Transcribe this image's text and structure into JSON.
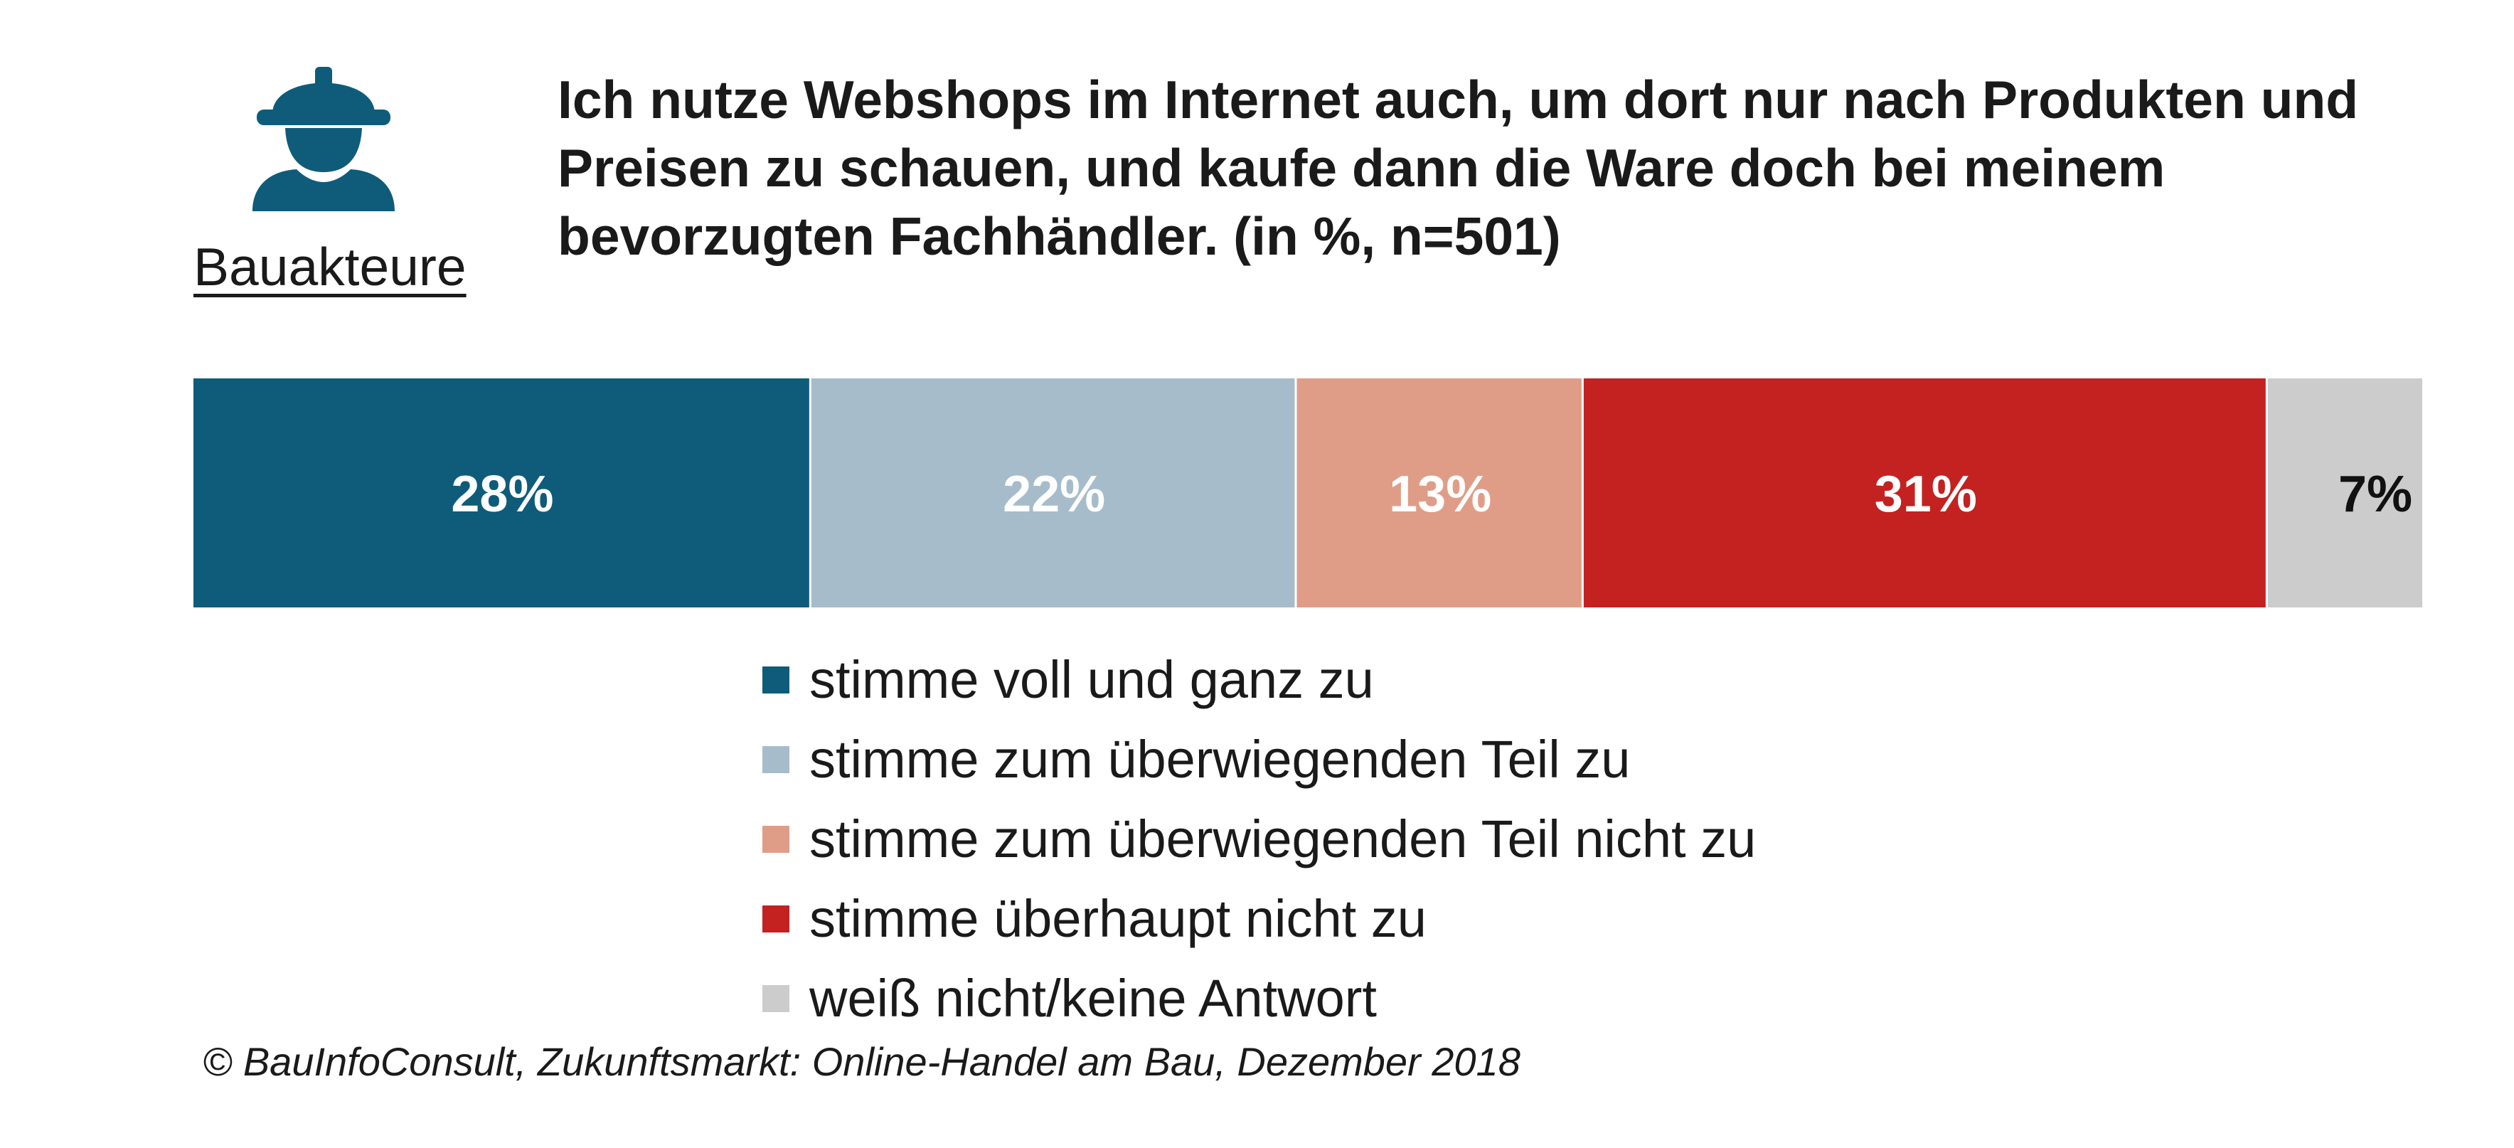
{
  "figure": {
    "icon": "construction-worker-icon",
    "label": "Bauakteure"
  },
  "chart_data": {
    "type": "bar",
    "orientation": "horizontal-stacked",
    "title": "Ich nutze Webshops im Internet auch, um dort nur nach Produkten und Preisen zu schauen, und kaufe dann die Ware doch bei meinem bevorzugten Fachhändler. (in %, n=501)",
    "xlabel": "",
    "ylabel": "",
    "unit": "%",
    "legend_position": "bottom",
    "grid": false,
    "series": [
      {
        "name": "stimme voll und ganz zu",
        "value": 28,
        "label": "28%",
        "color": "#0e5c79",
        "label_color": "#ffffff"
      },
      {
        "name": "stimme zum überwiegenden Teil zu",
        "value": 22,
        "label": "22%",
        "color": "#a6bccb",
        "label_color": "#ffffff"
      },
      {
        "name": "stimme zum überwiegenden Teil nicht zu",
        "value": 13,
        "label": "13%",
        "color": "#df9d88",
        "label_color": "#ffffff"
      },
      {
        "name": "stimme überhaupt nicht zu",
        "value": 31,
        "label": "31%",
        "color": "#c42121",
        "label_color": "#ffffff"
      },
      {
        "name": "weiß nicht/keine Antwort",
        "value": 7,
        "label": "7%",
        "color": "#cccccc",
        "label_color": "#111111"
      }
    ]
  },
  "source": "© BauInfoConsult, Zukunftsmarkt: Online-Handel am Bau, Dezember 2018"
}
